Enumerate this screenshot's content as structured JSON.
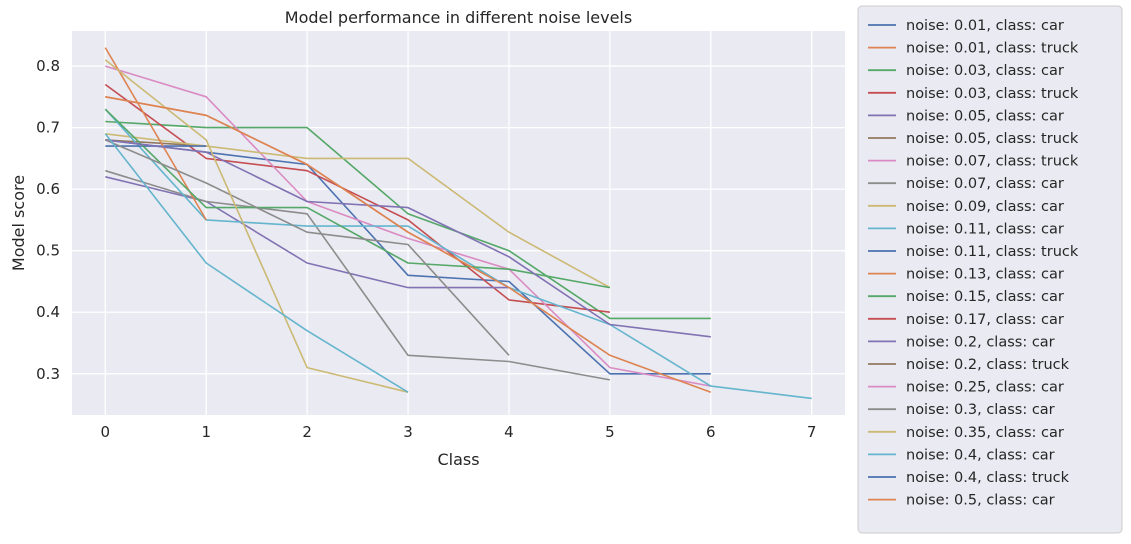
{
  "chart_data": {
    "type": "line",
    "title": "Model performance in different noise levels",
    "xlabel": "Class",
    "ylabel": "Model score",
    "xlim": [
      -0.33,
      7.33
    ],
    "ylim": [
      0.233,
      0.857
    ],
    "xticks": [
      0,
      1,
      2,
      3,
      4,
      5,
      6,
      7
    ],
    "yticks": [
      0.3,
      0.4,
      0.5,
      0.6,
      0.7,
      0.8
    ],
    "ytick_labels": [
      "0.3",
      "0.4",
      "0.5",
      "0.6",
      "0.7",
      "0.8"
    ],
    "grid": true,
    "legend_position": "outside-right",
    "background": "#eaeaf2",
    "series": [
      {
        "name": "noise: 0.01, class: car",
        "color": "#4c72b0",
        "values": [
          0.68,
          0.66,
          0.64,
          0.46,
          0.45,
          0.3,
          0.3
        ]
      },
      {
        "name": "noise: 0.01, class: truck",
        "color": "#dd8452",
        "values": [
          0.75,
          0.72,
          0.64,
          0.53,
          0.44
        ]
      },
      {
        "name": "noise: 0.03, class: car",
        "color": "#55a868",
        "values": [
          0.71,
          0.7,
          0.7,
          0.56,
          0.5,
          0.39,
          0.39
        ]
      },
      {
        "name": "noise: 0.03, class: truck",
        "color": "#c44e52",
        "values": [
          0.77,
          0.65,
          0.63,
          0.55,
          0.42,
          0.4
        ]
      },
      {
        "name": "noise: 0.05, class: car",
        "color": "#8172b3",
        "values": [
          0.62,
          0.58,
          0.48,
          0.44,
          0.44
        ]
      },
      {
        "name": "noise: 0.05, class: truck",
        "color": "#937860",
        "values": [
          0.68,
          0.67
        ]
      },
      {
        "name": "noise: 0.07, class: truck",
        "color": "#da8bc3",
        "values": [
          0.8,
          0.75,
          0.58,
          0.52,
          0.47,
          0.31,
          0.28
        ]
      },
      {
        "name": "noise: 0.07, class: car",
        "color": "#8c8c8c",
        "values": [
          0.63,
          0.58,
          0.56,
          0.33,
          0.32,
          0.29
        ]
      },
      {
        "name": "noise: 0.09, class: car",
        "color": "#ccb974",
        "values": [
          0.69,
          0.67,
          0.65,
          0.65,
          0.53,
          0.44
        ]
      },
      {
        "name": "noise: 0.11, class: car",
        "color": "#64b5cd",
        "values": [
          0.73,
          0.55,
          0.54,
          0.54,
          0.44,
          0.38,
          0.28,
          0.26
        ]
      },
      {
        "name": "noise: 0.11, class: truck",
        "color": "#4c72b0",
        "values": [
          0.67,
          0.67
        ]
      },
      {
        "name": "noise: 0.13, class: car",
        "color": "#dd8452",
        "values": [
          0.83,
          0.55
        ]
      },
      {
        "name": "noise: 0.15, class: car",
        "color": "#55a868",
        "values": [
          0.73,
          0.57,
          0.57,
          0.48,
          0.47,
          0.44
        ]
      },
      {
        "name": "noise: 0.17, class: car",
        "color": "#c44e52",
        "values": [
          0.75
        ]
      },
      {
        "name": "noise: 0.2, class: car",
        "color": "#8172b3",
        "values": [
          0.68,
          0.66,
          0.58,
          0.57,
          0.49,
          0.38,
          0.36
        ]
      },
      {
        "name": "noise: 0.2, class: truck",
        "color": "#937860",
        "values": [
          0.68
        ]
      },
      {
        "name": "noise: 0.25, class: car",
        "color": "#da8bc3",
        "values": [
          0.8
        ]
      },
      {
        "name": "noise: 0.3, class: car",
        "color": "#8c8c8c",
        "values": [
          0.68,
          0.61,
          0.53,
          0.51,
          0.33
        ]
      },
      {
        "name": "noise: 0.35, class: car",
        "color": "#ccb974",
        "values": [
          0.81,
          0.68,
          0.31,
          0.27
        ]
      },
      {
        "name": "noise: 0.4, class: car",
        "color": "#64b5cd",
        "values": [
          0.69,
          0.48,
          0.37,
          0.27
        ]
      },
      {
        "name": "noise: 0.4, class: truck",
        "color": "#4c72b0",
        "values": [
          0.67
        ]
      },
      {
        "name": "noise: 0.5, class: car",
        "color": "#dd8452",
        "values": [
          0.75,
          0.72,
          0.64,
          0.53,
          0.44,
          0.33,
          0.27
        ]
      }
    ]
  }
}
